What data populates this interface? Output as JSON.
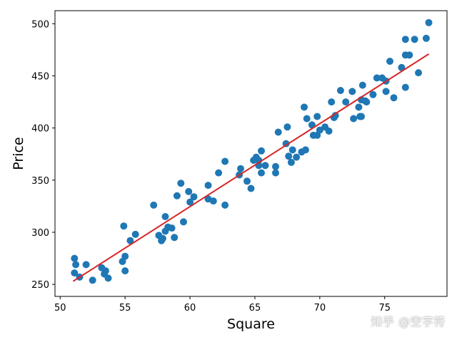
{
  "chart_data": {
    "type": "scatter",
    "xlabel": "Square",
    "ylabel": "Price",
    "xlim": [
      49.6,
      79.8
    ],
    "ylim": [
      238.5,
      512.5
    ],
    "xticks": [
      50,
      55,
      60,
      65,
      70,
      75
    ],
    "yticks": [
      250,
      300,
      350,
      400,
      450,
      500
    ],
    "grid": false,
    "points": [
      {
        "x": 51.1,
        "y": 275
      },
      {
        "x": 51.2,
        "y": 269
      },
      {
        "x": 51.1,
        "y": 261
      },
      {
        "x": 51.5,
        "y": 257
      },
      {
        "x": 52.0,
        "y": 269
      },
      {
        "x": 52.5,
        "y": 254
      },
      {
        "x": 53.2,
        "y": 266
      },
      {
        "x": 53.5,
        "y": 263
      },
      {
        "x": 53.4,
        "y": 260
      },
      {
        "x": 53.7,
        "y": 256
      },
      {
        "x": 54.8,
        "y": 272
      },
      {
        "x": 55.0,
        "y": 277
      },
      {
        "x": 55.0,
        "y": 263
      },
      {
        "x": 54.9,
        "y": 306
      },
      {
        "x": 55.4,
        "y": 292
      },
      {
        "x": 55.8,
        "y": 298
      },
      {
        "x": 57.2,
        "y": 326
      },
      {
        "x": 57.6,
        "y": 297
      },
      {
        "x": 57.8,
        "y": 292
      },
      {
        "x": 57.9,
        "y": 294
      },
      {
        "x": 58.1,
        "y": 315
      },
      {
        "x": 58.1,
        "y": 301
      },
      {
        "x": 58.3,
        "y": 305
      },
      {
        "x": 58.6,
        "y": 304
      },
      {
        "x": 58.8,
        "y": 295
      },
      {
        "x": 59.0,
        "y": 335
      },
      {
        "x": 59.3,
        "y": 347
      },
      {
        "x": 59.5,
        "y": 310
      },
      {
        "x": 59.9,
        "y": 339
      },
      {
        "x": 60.0,
        "y": 329
      },
      {
        "x": 60.3,
        "y": 334
      },
      {
        "x": 61.4,
        "y": 345
      },
      {
        "x": 61.4,
        "y": 332
      },
      {
        "x": 61.8,
        "y": 330
      },
      {
        "x": 62.2,
        "y": 357
      },
      {
        "x": 62.7,
        "y": 326
      },
      {
        "x": 62.7,
        "y": 368
      },
      {
        "x": 63.8,
        "y": 355
      },
      {
        "x": 63.9,
        "y": 361
      },
      {
        "x": 64.4,
        "y": 349
      },
      {
        "x": 64.7,
        "y": 342
      },
      {
        "x": 64.9,
        "y": 369
      },
      {
        "x": 65.1,
        "y": 372
      },
      {
        "x": 65.3,
        "y": 364
      },
      {
        "x": 65.3,
        "y": 369
      },
      {
        "x": 65.5,
        "y": 378
      },
      {
        "x": 65.5,
        "y": 357
      },
      {
        "x": 65.8,
        "y": 364
      },
      {
        "x": 66.6,
        "y": 363
      },
      {
        "x": 66.6,
        "y": 357
      },
      {
        "x": 66.8,
        "y": 396
      },
      {
        "x": 67.4,
        "y": 385
      },
      {
        "x": 67.5,
        "y": 401
      },
      {
        "x": 67.6,
        "y": 373
      },
      {
        "x": 67.8,
        "y": 367
      },
      {
        "x": 67.9,
        "y": 379
      },
      {
        "x": 68.2,
        "y": 372
      },
      {
        "x": 68.6,
        "y": 377
      },
      {
        "x": 68.8,
        "y": 420
      },
      {
        "x": 68.9,
        "y": 379
      },
      {
        "x": 69.0,
        "y": 409
      },
      {
        "x": 69.4,
        "y": 403
      },
      {
        "x": 69.5,
        "y": 393
      },
      {
        "x": 69.8,
        "y": 411
      },
      {
        "x": 69.8,
        "y": 393
      },
      {
        "x": 70.0,
        "y": 398
      },
      {
        "x": 70.4,
        "y": 401
      },
      {
        "x": 70.7,
        "y": 397
      },
      {
        "x": 70.9,
        "y": 425
      },
      {
        "x": 71.1,
        "y": 410
      },
      {
        "x": 71.2,
        "y": 412
      },
      {
        "x": 71.6,
        "y": 436
      },
      {
        "x": 72.0,
        "y": 425
      },
      {
        "x": 72.5,
        "y": 435
      },
      {
        "x": 72.6,
        "y": 409
      },
      {
        "x": 73.0,
        "y": 420
      },
      {
        "x": 73.1,
        "y": 411
      },
      {
        "x": 73.2,
        "y": 411
      },
      {
        "x": 73.2,
        "y": 427
      },
      {
        "x": 73.3,
        "y": 441
      },
      {
        "x": 73.5,
        "y": 426
      },
      {
        "x": 73.6,
        "y": 425
      },
      {
        "x": 74.1,
        "y": 432
      },
      {
        "x": 74.4,
        "y": 448
      },
      {
        "x": 74.8,
        "y": 448
      },
      {
        "x": 75.1,
        "y": 445
      },
      {
        "x": 75.1,
        "y": 435
      },
      {
        "x": 75.4,
        "y": 464
      },
      {
        "x": 75.7,
        "y": 429
      },
      {
        "x": 76.3,
        "y": 458
      },
      {
        "x": 76.6,
        "y": 439
      },
      {
        "x": 76.6,
        "y": 485
      },
      {
        "x": 76.6,
        "y": 470
      },
      {
        "x": 76.9,
        "y": 470
      },
      {
        "x": 77.3,
        "y": 485
      },
      {
        "x": 77.6,
        "y": 453
      },
      {
        "x": 78.2,
        "y": 486
      },
      {
        "x": 78.4,
        "y": 501
      }
    ],
    "fit_line": {
      "x": [
        51.0,
        78.4
      ],
      "y": [
        253,
        471
      ]
    },
    "colors": {
      "points": "#1f77b4",
      "fit_line": "#d62728",
      "axes": "#000000"
    }
  },
  "watermark": "知乎 @空字符"
}
